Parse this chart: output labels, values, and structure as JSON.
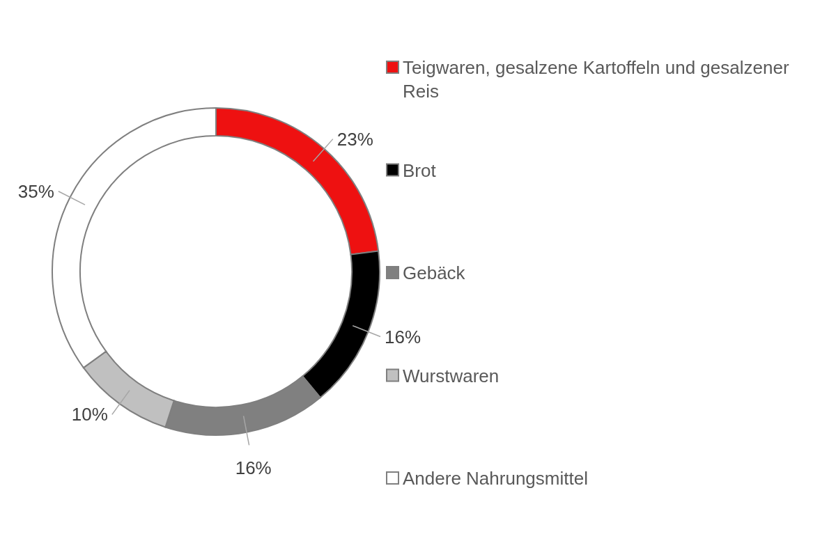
{
  "chart_data": {
    "type": "donut",
    "categories": [
      "Teigwaren, gesalzene Kartoffeln und gesalzener Reis",
      "Brot",
      "Gebäck",
      "Wurstwaren",
      "Andere Nahrungsmittel"
    ],
    "values": [
      23,
      16,
      16,
      10,
      35
    ],
    "value_labels": [
      "23%",
      "16%",
      "16%",
      "10%",
      "35%"
    ],
    "colors": [
      "#ee1111",
      "#000000",
      "#808080",
      "#c0c0c0",
      "#ffffff"
    ],
    "legend": "right"
  }
}
